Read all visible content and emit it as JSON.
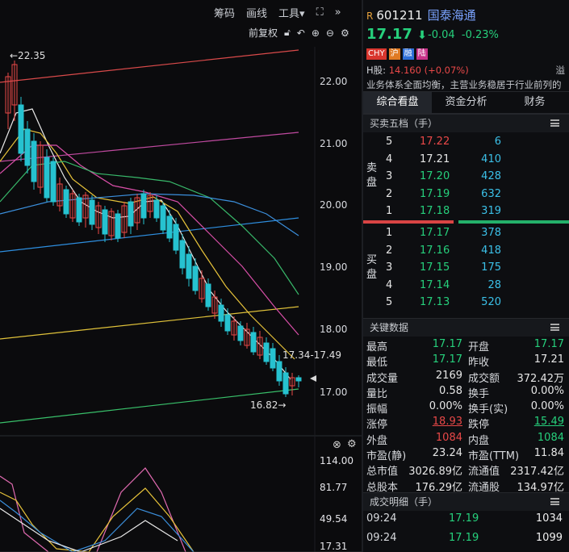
{
  "toolbar": {
    "chips_label": "筹码",
    "draw_label": "画线",
    "tools_label": "工具▾",
    "expand_icon": "expand-icon",
    "more_icon": "double-chevron-right-icon",
    "adjust_label": "前复权"
  },
  "chart": {
    "price_ticks": [
      "22.00",
      "21.00",
      "20.00",
      "19.00",
      "18.00",
      "17.00"
    ],
    "high_annotation": "←22.35",
    "low_annotation": "16.82→",
    "range_annotation": "17.34-17.49",
    "sub_ticks": [
      "114.00",
      "81.77",
      "49.54",
      "17.31"
    ]
  },
  "header": {
    "r_tag": "R",
    "code": "601211",
    "name": "国泰海通",
    "price": "17.17",
    "arrow": "⬇",
    "change": "-0.04",
    "change_pct": "-0.23%",
    "badges": [
      "CHY",
      "沪",
      "融",
      "陆"
    ],
    "h_share_label": "H股: ",
    "h_share_value": "14.160 (+0.07%)",
    "premium_label": "溢",
    "description": "业务体系全面均衡，主营业务稳居于行业前列的"
  },
  "tabs": [
    "综合看盘",
    "资金分析",
    "财务"
  ],
  "orderbook": {
    "title": "买卖五档（手）",
    "sell_label": "卖盘",
    "buy_label": "买盘",
    "asks": [
      {
        "lv": "5",
        "price": "17.22",
        "vol": "6",
        "color": "#e94848"
      },
      {
        "lv": "4",
        "price": "17.21",
        "vol": "410",
        "color": "#e6e6e6"
      },
      {
        "lv": "3",
        "price": "17.20",
        "vol": "428",
        "color": "#26d07c"
      },
      {
        "lv": "2",
        "price": "17.19",
        "vol": "632",
        "color": "#26d07c"
      },
      {
        "lv": "1",
        "price": "17.18",
        "vol": "319",
        "color": "#26d07c"
      }
    ],
    "bids": [
      {
        "lv": "1",
        "price": "17.17",
        "vol": "378",
        "color": "#26d07c"
      },
      {
        "lv": "2",
        "price": "17.16",
        "vol": "418",
        "color": "#26d07c"
      },
      {
        "lv": "3",
        "price": "17.15",
        "vol": "175",
        "color": "#26d07c"
      },
      {
        "lv": "4",
        "price": "17.14",
        "vol": "28",
        "color": "#26d07c"
      },
      {
        "lv": "5",
        "price": "17.13",
        "vol": "520",
        "color": "#26d07c"
      }
    ]
  },
  "keydata": {
    "title": "关键数据",
    "rows": [
      {
        "l1": "最高",
        "v1": "17.17",
        "c1": "#26d07c",
        "l2": "开盘",
        "v2": "17.17",
        "c2": "#26d07c"
      },
      {
        "l1": "最低",
        "v1": "17.17",
        "c1": "#26d07c",
        "l2": "昨收",
        "v2": "17.21",
        "c2": "#e6e6e6"
      },
      {
        "l1": "成交量",
        "v1": "2169",
        "c1": "#e6e6e6",
        "l2": "成交额",
        "v2": "372.42万",
        "c2": "#e6e6e6"
      },
      {
        "l1": "量比",
        "v1": "0.58",
        "c1": "#e6e6e6",
        "l2": "换手",
        "v2": "0.00%",
        "c2": "#e6e6e6"
      },
      {
        "l1": "振幅",
        "v1": "0.00%",
        "c1": "#e6e6e6",
        "l2": "换手(实)",
        "v2": "0.00%",
        "c2": "#e6e6e6"
      },
      {
        "l1": "涨停",
        "v1": "18.93",
        "c1": "#e94848",
        "l2": "跌停",
        "v2": "15.49",
        "c2": "#26d07c"
      },
      {
        "l1": "外盘",
        "v1": "1084",
        "c1": "#e94848",
        "l2": "内盘",
        "v2": "1084",
        "c2": "#26d07c"
      },
      {
        "l1": "市盈(静)",
        "v1": "23.24",
        "c1": "#e6e6e6",
        "l2": "市盈(TTM)",
        "v2": "11.84",
        "c2": "#e6e6e6"
      },
      {
        "l1": "总市值",
        "v1": "3026.89亿",
        "c1": "#e6e6e6",
        "l2": "流通值",
        "v2": "2317.42亿",
        "c2": "#e6e6e6"
      },
      {
        "l1": "总股本",
        "v1": "176.29亿",
        "c1": "#e6e6e6",
        "l2": "流通股",
        "v2": "134.97亿",
        "c2": "#e6e6e6"
      }
    ]
  },
  "trades": {
    "title": "成交明细（手）",
    "rows": [
      {
        "time": "09:24",
        "price": "17.19",
        "vol": "1034"
      },
      {
        "time": "09:24",
        "price": "17.19",
        "vol": "1099"
      }
    ]
  },
  "colors": {
    "up": "#e94848",
    "down": "#26d07c",
    "accent": "#7aa3ff"
  }
}
